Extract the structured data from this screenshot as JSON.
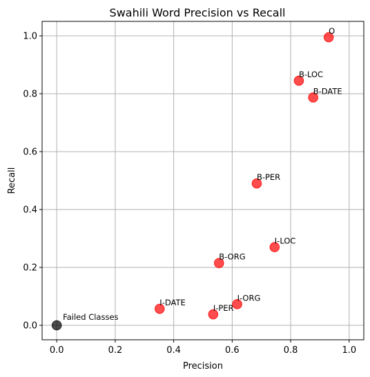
{
  "chart_data": {
    "type": "scatter",
    "title": "Swahili Word Precision vs Recall",
    "xlabel": "Precision",
    "ylabel": "Recall",
    "xlim": [
      -0.05,
      1.05
    ],
    "ylim": [
      -0.05,
      1.05
    ],
    "xticks": [
      0.0,
      0.2,
      0.4,
      0.6,
      0.8,
      1.0
    ],
    "yticks": [
      0.0,
      0.2,
      0.4,
      0.6,
      0.8,
      1.0
    ],
    "grid": true,
    "colors": {
      "class_point": "#ff0000",
      "failed_point": "#000000",
      "grid": "#b0b0b0",
      "axes": "#000000"
    },
    "points": [
      {
        "label": "O",
        "x": 0.93,
        "y": 0.995,
        "group": "class"
      },
      {
        "label": "B-LOC",
        "x": 0.828,
        "y": 0.845,
        "group": "class"
      },
      {
        "label": "B-DATE",
        "x": 0.877,
        "y": 0.787,
        "group": "class"
      },
      {
        "label": "B-PER",
        "x": 0.684,
        "y": 0.49,
        "group": "class"
      },
      {
        "label": "I-LOC",
        "x": 0.745,
        "y": 0.27,
        "group": "class"
      },
      {
        "label": "B-ORG",
        "x": 0.555,
        "y": 0.215,
        "group": "class"
      },
      {
        "label": "I-ORG",
        "x": 0.617,
        "y": 0.073,
        "group": "class"
      },
      {
        "label": "I-DATE",
        "x": 0.352,
        "y": 0.057,
        "group": "class"
      },
      {
        "label": "I-PER",
        "x": 0.535,
        "y": 0.038,
        "group": "class"
      },
      {
        "label": "Failed Classes",
        "x": 0.0,
        "y": 0.0,
        "group": "failed"
      }
    ]
  }
}
